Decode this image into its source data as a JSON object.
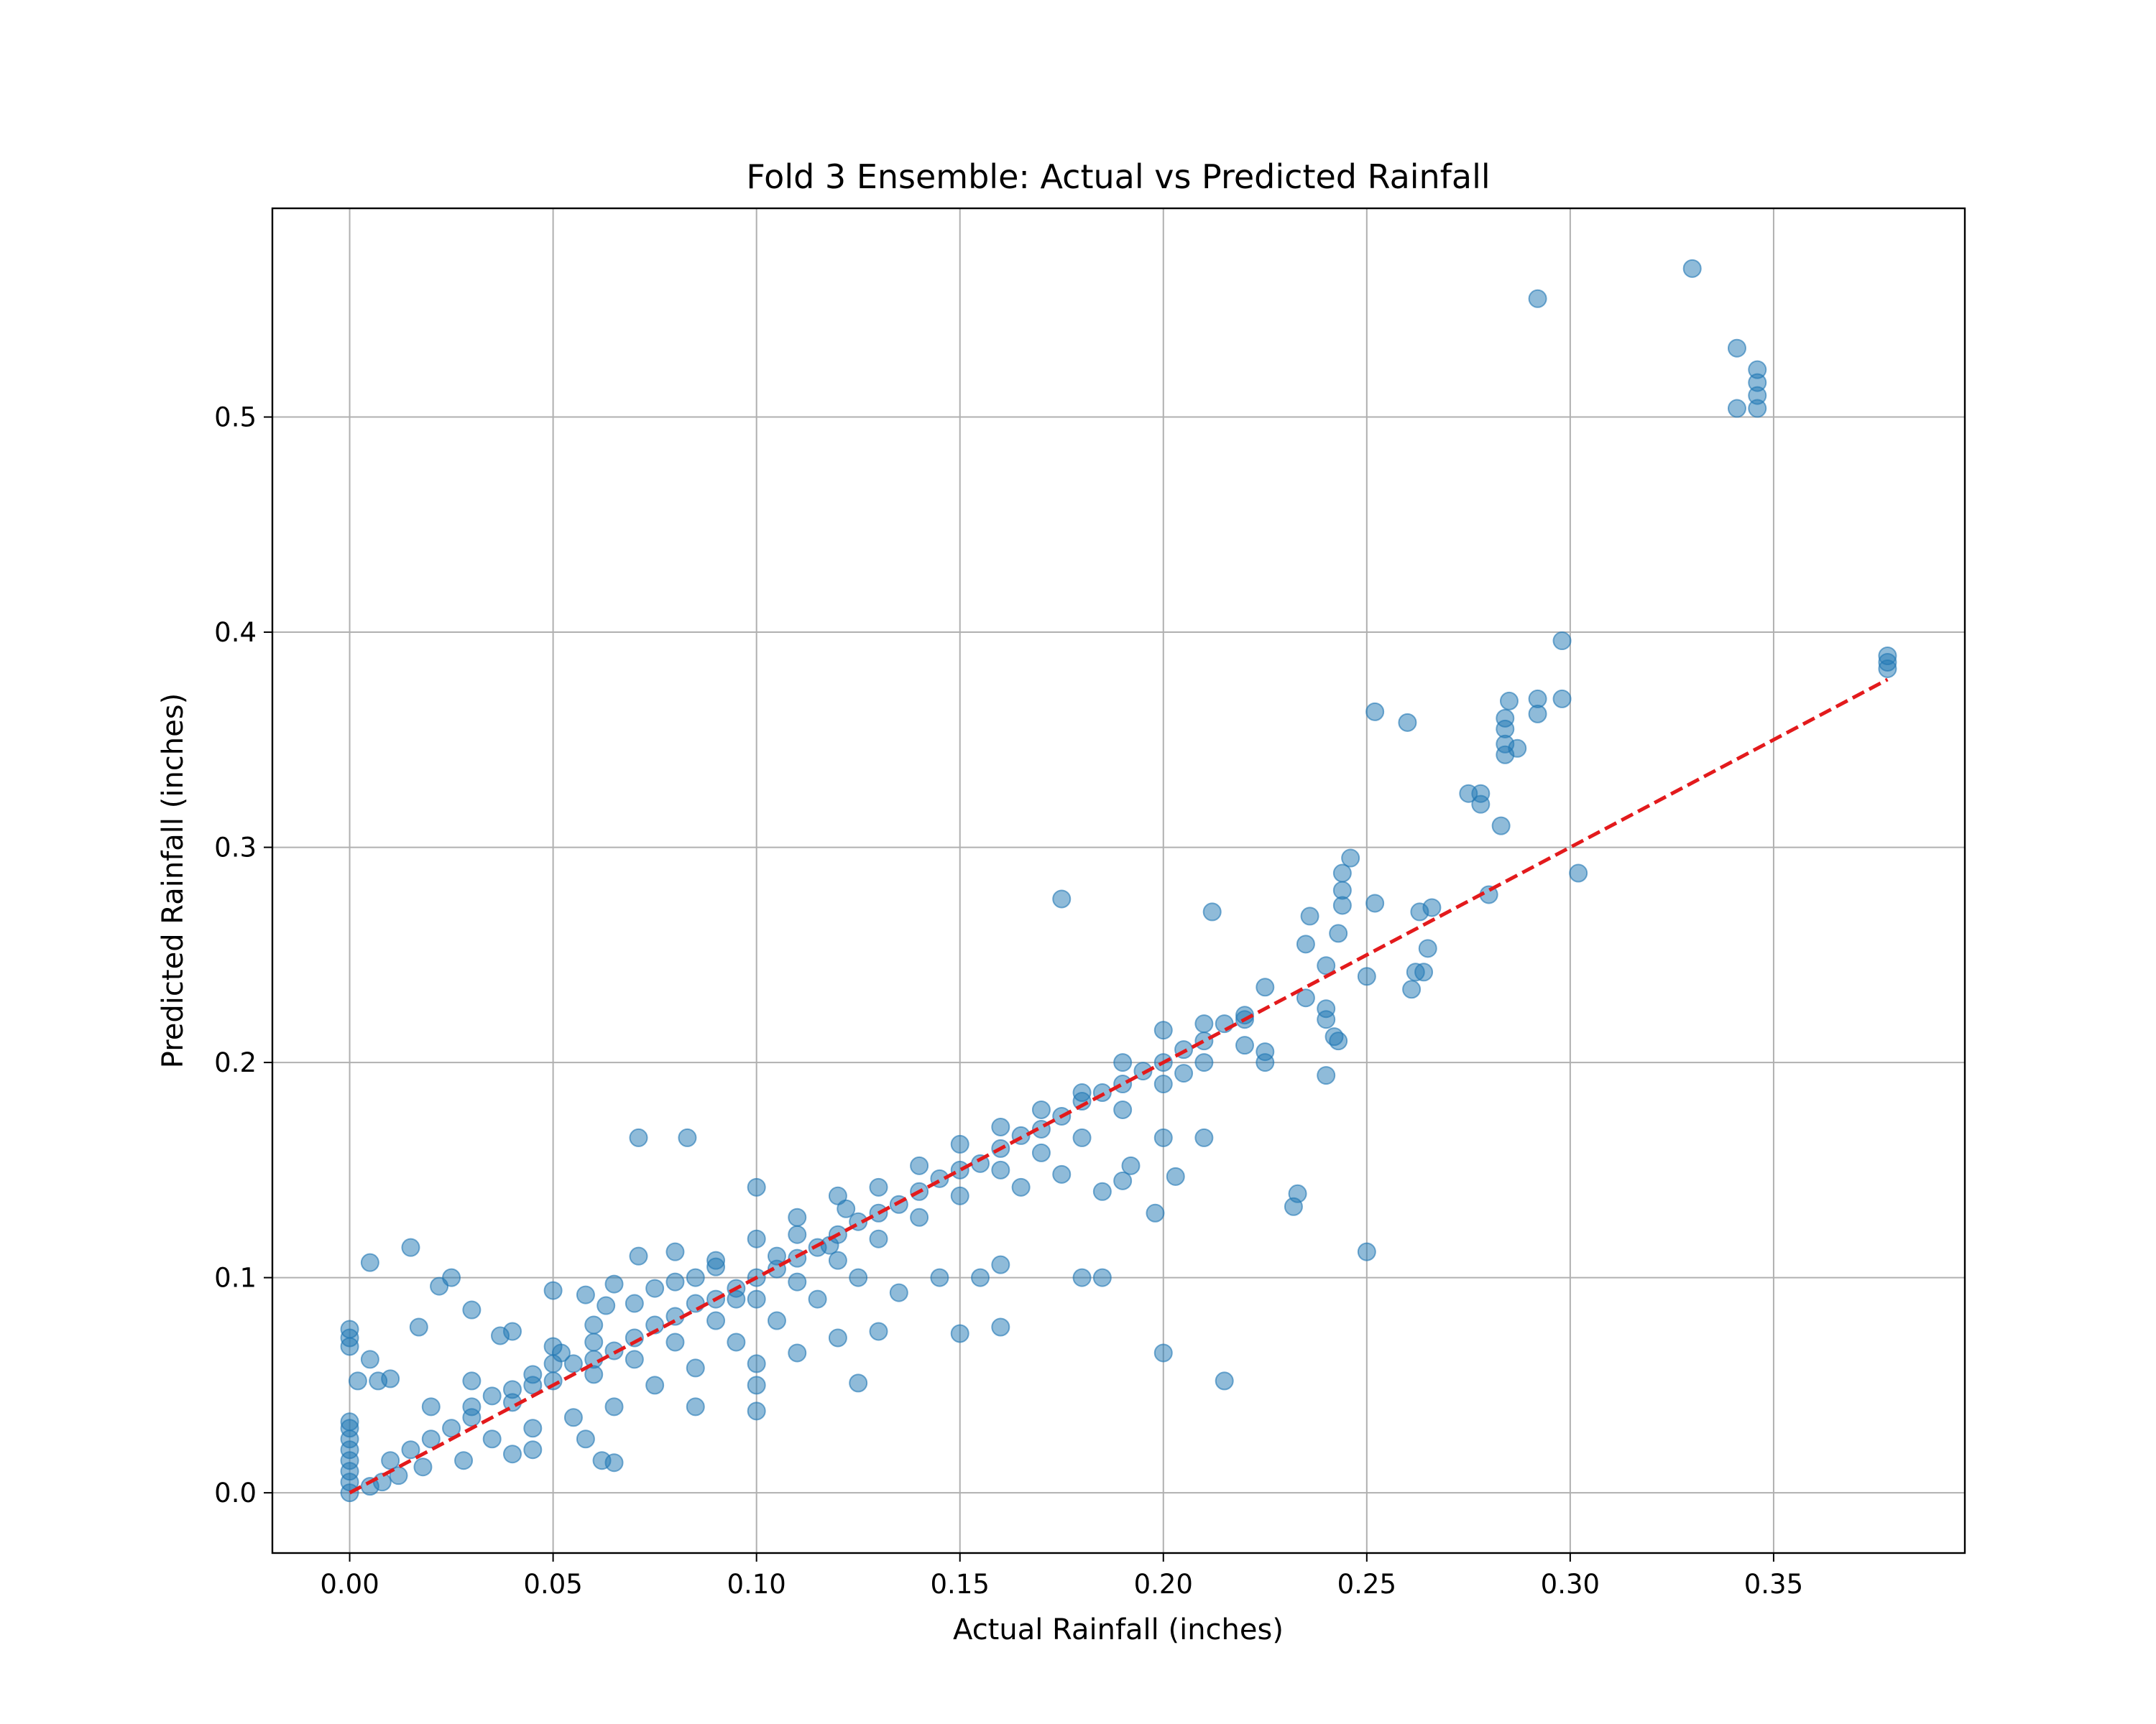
{
  "chart_data": {
    "type": "scatter",
    "title": "Fold 3 Ensemble: Actual vs Predicted Rainfall",
    "xlabel": "Actual Rainfall (inches)",
    "ylabel": "Predicted Rainfall (inches)",
    "xlim": [
      -0.019,
      0.397
    ],
    "ylim": [
      -0.028,
      0.597
    ],
    "xticks": [
      0.0,
      0.05,
      0.1,
      0.15,
      0.2,
      0.25,
      0.3,
      0.35
    ],
    "xtick_labels": [
      "0.00",
      "0.05",
      "0.10",
      "0.15",
      "0.20",
      "0.25",
      "0.30",
      "0.35"
    ],
    "yticks": [
      0.0,
      0.1,
      0.2,
      0.3,
      0.4,
      0.5
    ],
    "ytick_labels": [
      "0.0",
      "0.1",
      "0.2",
      "0.3",
      "0.4",
      "0.5"
    ],
    "grid": true,
    "colors": {
      "points": "#1f77b4",
      "reference_line": "#e31a1c",
      "grid": "#b0b0b0"
    },
    "reference_line": {
      "x": [
        0.0,
        0.378
      ],
      "y": [
        0.0,
        0.378
      ],
      "style": "dashed"
    },
    "series": [
      {
        "points": [
          [
            0.0,
            0.0
          ],
          [
            0.0,
            0.005
          ],
          [
            0.0,
            0.01
          ],
          [
            0.0,
            0.015
          ],
          [
            0.0,
            0.02
          ],
          [
            0.0,
            0.025
          ],
          [
            0.0,
            0.03
          ],
          [
            0.0,
            0.033
          ],
          [
            0.0,
            0.068
          ],
          [
            0.0,
            0.072
          ],
          [
            0.0,
            0.076
          ],
          [
            0.002,
            0.052
          ],
          [
            0.005,
            0.107
          ],
          [
            0.005,
            0.062
          ],
          [
            0.007,
            0.052
          ],
          [
            0.01,
            0.053
          ],
          [
            0.015,
            0.114
          ],
          [
            0.017,
            0.077
          ],
          [
            0.022,
            0.096
          ],
          [
            0.025,
            0.1
          ],
          [
            0.03,
            0.085
          ],
          [
            0.04,
            0.075
          ],
          [
            0.037,
            0.073
          ],
          [
            0.05,
            0.094
          ],
          [
            0.05,
            0.06
          ],
          [
            0.052,
            0.065
          ],
          [
            0.058,
            0.092
          ],
          [
            0.06,
            0.07
          ],
          [
            0.063,
            0.087
          ],
          [
            0.065,
            0.097
          ],
          [
            0.071,
            0.11
          ],
          [
            0.075,
            0.095
          ],
          [
            0.08,
            0.112
          ],
          [
            0.085,
            0.1
          ],
          [
            0.09,
            0.105
          ],
          [
            0.095,
            0.09
          ],
          [
            0.1,
            0.142
          ],
          [
            0.105,
            0.11
          ],
          [
            0.11,
            0.12
          ],
          [
            0.118,
            0.115
          ],
          [
            0.122,
            0.132
          ],
          [
            0.071,
            0.165
          ],
          [
            0.083,
            0.165
          ],
          [
            0.175,
            0.276
          ],
          [
            0.212,
            0.27
          ],
          [
            0.03,
            0.04
          ],
          [
            0.04,
            0.048
          ],
          [
            0.045,
            0.055
          ],
          [
            0.05,
            0.052
          ],
          [
            0.055,
            0.06
          ],
          [
            0.06,
            0.062
          ],
          [
            0.065,
            0.066
          ],
          [
            0.07,
            0.072
          ],
          [
            0.075,
            0.078
          ],
          [
            0.08,
            0.082
          ],
          [
            0.085,
            0.088
          ],
          [
            0.09,
            0.09
          ],
          [
            0.095,
            0.095
          ],
          [
            0.1,
            0.1
          ],
          [
            0.105,
            0.104
          ],
          [
            0.11,
            0.109
          ],
          [
            0.115,
            0.114
          ],
          [
            0.12,
            0.12
          ],
          [
            0.125,
            0.126
          ],
          [
            0.13,
            0.13
          ],
          [
            0.135,
            0.134
          ],
          [
            0.14,
            0.14
          ],
          [
            0.145,
            0.146
          ],
          [
            0.15,
            0.15
          ],
          [
            0.155,
            0.153
          ],
          [
            0.16,
            0.16
          ],
          [
            0.165,
            0.166
          ],
          [
            0.17,
            0.169
          ],
          [
            0.175,
            0.175
          ],
          [
            0.18,
            0.182
          ],
          [
            0.185,
            0.186
          ],
          [
            0.19,
            0.19
          ],
          [
            0.195,
            0.196
          ],
          [
            0.2,
            0.2
          ],
          [
            0.205,
            0.206
          ],
          [
            0.21,
            0.21
          ],
          [
            0.215,
            0.218
          ],
          [
            0.22,
            0.22
          ],
          [
            0.225,
            0.235
          ],
          [
            0.24,
            0.245
          ],
          [
            0.01,
            0.015
          ],
          [
            0.015,
            0.02
          ],
          [
            0.02,
            0.025
          ],
          [
            0.025,
            0.03
          ],
          [
            0.03,
            0.035
          ],
          [
            0.035,
            0.045
          ],
          [
            0.04,
            0.042
          ],
          [
            0.045,
            0.05
          ],
          [
            0.06,
            0.055
          ],
          [
            0.07,
            0.062
          ],
          [
            0.08,
            0.07
          ],
          [
            0.09,
            0.08
          ],
          [
            0.1,
            0.09
          ],
          [
            0.11,
            0.098
          ],
          [
            0.12,
            0.108
          ],
          [
            0.13,
            0.118
          ],
          [
            0.14,
            0.128
          ],
          [
            0.15,
            0.138
          ],
          [
            0.16,
            0.15
          ],
          [
            0.17,
            0.158
          ],
          [
            0.18,
            0.165
          ],
          [
            0.19,
            0.178
          ],
          [
            0.2,
            0.19
          ],
          [
            0.205,
            0.195
          ],
          [
            0.21,
            0.2
          ],
          [
            0.22,
            0.208
          ],
          [
            0.225,
            0.2
          ],
          [
            0.235,
            0.23
          ],
          [
            0.24,
            0.22
          ],
          [
            0.243,
            0.21
          ],
          [
            0.035,
            0.025
          ],
          [
            0.045,
            0.03
          ],
          [
            0.055,
            0.035
          ],
          [
            0.065,
            0.04
          ],
          [
            0.075,
            0.05
          ],
          [
            0.085,
            0.058
          ],
          [
            0.095,
            0.07
          ],
          [
            0.105,
            0.08
          ],
          [
            0.115,
            0.09
          ],
          [
            0.125,
            0.1
          ],
          [
            0.02,
            0.04
          ],
          [
            0.03,
            0.052
          ],
          [
            0.05,
            0.068
          ],
          [
            0.06,
            0.078
          ],
          [
            0.07,
            0.088
          ],
          [
            0.08,
            0.098
          ],
          [
            0.09,
            0.108
          ],
          [
            0.1,
            0.118
          ],
          [
            0.11,
            0.128
          ],
          [
            0.12,
            0.138
          ],
          [
            0.13,
            0.142
          ],
          [
            0.14,
            0.152
          ],
          [
            0.15,
            0.162
          ],
          [
            0.16,
            0.17
          ],
          [
            0.17,
            0.178
          ],
          [
            0.18,
            0.186
          ],
          [
            0.19,
            0.2
          ],
          [
            0.2,
            0.215
          ],
          [
            0.21,
            0.218
          ],
          [
            0.22,
            0.222
          ],
          [
            0.058,
            0.025
          ],
          [
            0.062,
            0.015
          ],
          [
            0.065,
            0.014
          ],
          [
            0.04,
            0.018
          ],
          [
            0.045,
            0.02
          ],
          [
            0.028,
            0.015
          ],
          [
            0.018,
            0.012
          ],
          [
            0.012,
            0.008
          ],
          [
            0.008,
            0.005
          ],
          [
            0.005,
            0.003
          ],
          [
            0.085,
            0.04
          ],
          [
            0.1,
            0.038
          ],
          [
            0.1,
            0.05
          ],
          [
            0.1,
            0.06
          ],
          [
            0.11,
            0.065
          ],
          [
            0.125,
            0.051
          ],
          [
            0.12,
            0.072
          ],
          [
            0.13,
            0.075
          ],
          [
            0.135,
            0.093
          ],
          [
            0.145,
            0.1
          ],
          [
            0.15,
            0.074
          ],
          [
            0.155,
            0.1
          ],
          [
            0.16,
            0.077
          ],
          [
            0.16,
            0.106
          ],
          [
            0.165,
            0.142
          ],
          [
            0.175,
            0.148
          ],
          [
            0.18,
            0.1
          ],
          [
            0.185,
            0.1
          ],
          [
            0.185,
            0.14
          ],
          [
            0.19,
            0.145
          ],
          [
            0.192,
            0.152
          ],
          [
            0.198,
            0.13
          ],
          [
            0.2,
            0.165
          ],
          [
            0.2,
            0.065
          ],
          [
            0.203,
            0.147
          ],
          [
            0.21,
            0.165
          ],
          [
            0.215,
            0.052
          ],
          [
            0.232,
            0.133
          ],
          [
            0.233,
            0.139
          ],
          [
            0.25,
            0.112
          ],
          [
            0.225,
            0.205
          ],
          [
            0.235,
            0.255
          ],
          [
            0.236,
            0.268
          ],
          [
            0.24,
            0.194
          ],
          [
            0.24,
            0.225
          ],
          [
            0.242,
            0.212
          ],
          [
            0.243,
            0.26
          ],
          [
            0.244,
            0.28
          ],
          [
            0.244,
            0.273
          ],
          [
            0.244,
            0.288
          ],
          [
            0.246,
            0.295
          ],
          [
            0.25,
            0.24
          ],
          [
            0.252,
            0.274
          ],
          [
            0.252,
            0.363
          ],
          [
            0.26,
            0.358
          ],
          [
            0.261,
            0.234
          ],
          [
            0.262,
            0.242
          ],
          [
            0.263,
            0.27
          ],
          [
            0.264,
            0.242
          ],
          [
            0.266,
            0.272
          ],
          [
            0.265,
            0.253
          ],
          [
            0.275,
            0.325
          ],
          [
            0.278,
            0.32
          ],
          [
            0.278,
            0.325
          ],
          [
            0.28,
            0.278
          ],
          [
            0.283,
            0.31
          ],
          [
            0.284,
            0.343
          ],
          [
            0.284,
            0.348
          ],
          [
            0.284,
            0.355
          ],
          [
            0.284,
            0.36
          ],
          [
            0.285,
            0.368
          ],
          [
            0.287,
            0.346
          ],
          [
            0.292,
            0.362
          ],
          [
            0.292,
            0.369
          ],
          [
            0.298,
            0.369
          ],
          [
            0.298,
            0.396
          ],
          [
            0.302,
            0.288
          ],
          [
            0.292,
            0.555
          ],
          [
            0.33,
            0.569
          ],
          [
            0.341,
            0.532
          ],
          [
            0.341,
            0.504
          ],
          [
            0.346,
            0.504
          ],
          [
            0.346,
            0.51
          ],
          [
            0.346,
            0.516
          ],
          [
            0.346,
            0.522
          ],
          [
            0.378,
            0.383
          ],
          [
            0.378,
            0.386
          ],
          [
            0.378,
            0.389
          ]
        ]
      }
    ]
  }
}
